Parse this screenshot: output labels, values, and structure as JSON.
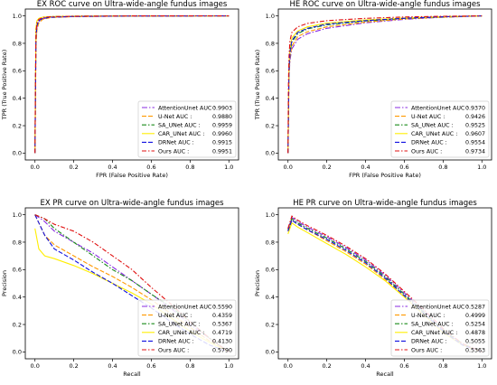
{
  "colors": {
    "AttentionUnet": "#8a2be2",
    "U-Net": "#ff9900",
    "SA_UNet": "#1a8a1a",
    "CAR_UNet": "#ffee00",
    "DRNet": "#1010e0",
    "Ours": "#e01010"
  },
  "chart_data": [
    {
      "type": "line",
      "title": "EX ROC curve on Ultra-wide-angle fundus images",
      "xlabel": "FPR (False Positive Rate)",
      "ylabel": "TPR (True Positive Rate)",
      "xlim": [
        -0.05,
        1.05
      ],
      "ylim": [
        -0.05,
        1.05
      ],
      "xticks": [
        "0.0",
        "0.2",
        "0.4",
        "0.6",
        "0.8",
        "1.0"
      ],
      "yticks": [
        "0.0",
        "0.2",
        "0.4",
        "0.6",
        "0.8",
        "1.0"
      ],
      "legend_position": "lower-right",
      "series": [
        {
          "name": "AttentionUnet AUC :",
          "auc": "0.9903",
          "x": [
            0,
            0.005,
            0.01,
            0.02,
            0.04,
            0.08,
            0.2,
            0.5,
            1.0
          ],
          "y": [
            0,
            0.82,
            0.92,
            0.96,
            0.98,
            0.99,
            0.995,
            0.999,
            1.0
          ]
        },
        {
          "name": "U-Net AUC :",
          "auc": "0.9880",
          "x": [
            0,
            0.005,
            0.01,
            0.02,
            0.04,
            0.08,
            0.2,
            0.5,
            1.0
          ],
          "y": [
            0,
            0.78,
            0.9,
            0.95,
            0.975,
            0.988,
            0.995,
            0.999,
            1.0
          ]
        },
        {
          "name": "SA_UNet AUC :",
          "auc": "0.9959",
          "x": [
            0,
            0.005,
            0.01,
            0.02,
            0.04,
            0.08,
            0.2,
            0.5,
            1.0
          ],
          "y": [
            0,
            0.9,
            0.96,
            0.98,
            0.99,
            0.995,
            0.998,
            1.0,
            1.0
          ]
        },
        {
          "name": "CAR_UNet AUC :",
          "auc": "0.9960",
          "x": [
            0,
            0.005,
            0.01,
            0.02,
            0.04,
            0.08,
            0.2,
            0.5,
            1.0
          ],
          "y": [
            0,
            0.91,
            0.965,
            0.982,
            0.991,
            0.995,
            0.998,
            1.0,
            1.0
          ]
        },
        {
          "name": "DRNet AUC :",
          "auc": "0.9915",
          "x": [
            0,
            0.005,
            0.01,
            0.02,
            0.04,
            0.08,
            0.2,
            0.5,
            1.0
          ],
          "y": [
            0,
            0.84,
            0.93,
            0.965,
            0.982,
            0.99,
            0.996,
            0.999,
            1.0
          ]
        },
        {
          "name": "Ours AUC :",
          "auc": "0.9951",
          "x": [
            0,
            0.002,
            0.005,
            0.01,
            0.02,
            0.04,
            0.08,
            0.2,
            0.5,
            1.0
          ],
          "y": [
            0,
            0.5,
            0.88,
            0.95,
            0.975,
            0.988,
            0.994,
            0.998,
            1.0,
            1.0
          ]
        }
      ]
    },
    {
      "type": "line",
      "title": "HE ROC curve on Ultra-wide-angle fundus images",
      "xlabel": "FPR (False Positive Rate)",
      "ylabel": "TPR (True Positive Rate)",
      "xlim": [
        -0.05,
        1.05
      ],
      "ylim": [
        -0.05,
        1.05
      ],
      "xticks": [
        "0.0",
        "0.2",
        "0.4",
        "0.6",
        "0.8",
        "1.0"
      ],
      "yticks": [
        "0.0",
        "0.2",
        "0.4",
        "0.6",
        "0.8",
        "1.0"
      ],
      "legend_position": "lower-right",
      "series": [
        {
          "name": "AttentionUnet AUC :",
          "auc": "0.9370",
          "x": [
            0,
            0.005,
            0.01,
            0.02,
            0.05,
            0.1,
            0.2,
            0.4,
            0.6,
            0.8,
            1.0
          ],
          "y": [
            0,
            0.55,
            0.68,
            0.76,
            0.83,
            0.87,
            0.91,
            0.95,
            0.975,
            0.99,
            1.0
          ]
        },
        {
          "name": "U-Net AUC :",
          "auc": "0.9426",
          "x": [
            0,
            0.005,
            0.01,
            0.02,
            0.05,
            0.1,
            0.2,
            0.4,
            0.6,
            0.8,
            1.0
          ],
          "y": [
            0,
            0.57,
            0.7,
            0.78,
            0.85,
            0.885,
            0.92,
            0.955,
            0.978,
            0.991,
            1.0
          ]
        },
        {
          "name": "SA_UNet AUC :",
          "auc": "0.9525",
          "x": [
            0,
            0.005,
            0.01,
            0.02,
            0.05,
            0.1,
            0.2,
            0.4,
            0.6,
            0.8,
            1.0
          ],
          "y": [
            0,
            0.6,
            0.73,
            0.81,
            0.87,
            0.905,
            0.935,
            0.963,
            0.982,
            0.993,
            1.0
          ]
        },
        {
          "name": "CAR_UNet AUC :",
          "auc": "0.9607",
          "x": [
            0,
            0.005,
            0.01,
            0.02,
            0.05,
            0.1,
            0.2,
            0.4,
            0.6,
            0.8,
            1.0
          ],
          "y": [
            0,
            0.62,
            0.76,
            0.84,
            0.89,
            0.92,
            0.948,
            0.97,
            0.985,
            0.995,
            1.0
          ]
        },
        {
          "name": "DRNet AUC :",
          "auc": "0.9554",
          "x": [
            0,
            0.005,
            0.01,
            0.02,
            0.05,
            0.1,
            0.2,
            0.4,
            0.6,
            0.8,
            1.0
          ],
          "y": [
            0,
            0.61,
            0.74,
            0.82,
            0.88,
            0.91,
            0.94,
            0.966,
            0.983,
            0.994,
            1.0
          ]
        },
        {
          "name": "Ours AUC :",
          "auc": "0.9734",
          "x": [
            0,
            0.002,
            0.005,
            0.01,
            0.02,
            0.05,
            0.1,
            0.2,
            0.4,
            0.6,
            0.8,
            1.0
          ],
          "y": [
            0,
            0.5,
            0.7,
            0.82,
            0.88,
            0.92,
            0.945,
            0.965,
            0.982,
            0.992,
            0.997,
            1.0
          ]
        }
      ]
    },
    {
      "type": "line",
      "title": "EX PR curve on  Ultra-wide-angle fundus images",
      "xlabel": "Recall",
      "ylabel": "Precision",
      "xlim": [
        -0.05,
        1.05
      ],
      "ylim": [
        -0.05,
        1.05
      ],
      "xticks": [
        "0.0",
        "0.2",
        "0.4",
        "0.6",
        "0.8",
        "1.0"
      ],
      "yticks": [
        "0.0",
        "0.2",
        "0.4",
        "0.6",
        "0.8",
        "1.0"
      ],
      "legend_position": "lower-right",
      "series": [
        {
          "name": "AttentionUnet AUC :",
          "auc": "0.5590",
          "x": [
            0,
            0.05,
            0.1,
            0.2,
            0.3,
            0.4,
            0.5,
            0.6,
            0.7,
            0.8,
            0.9,
            1.0
          ],
          "y": [
            1.0,
            0.95,
            0.88,
            0.8,
            0.72,
            0.62,
            0.52,
            0.42,
            0.32,
            0.2,
            0.1,
            0.0
          ]
        },
        {
          "name": "U-Net AUC :",
          "auc": "0.4359",
          "x": [
            0,
            0.05,
            0.1,
            0.2,
            0.3,
            0.4,
            0.5,
            0.6,
            0.7,
            0.8,
            0.9,
            1.0
          ],
          "y": [
            1.0,
            0.85,
            0.78,
            0.7,
            0.62,
            0.55,
            0.47,
            0.38,
            0.28,
            0.18,
            0.08,
            0.0
          ]
        },
        {
          "name": "SA_UNet AUC :",
          "auc": "0.5367",
          "x": [
            0,
            0.05,
            0.1,
            0.2,
            0.3,
            0.4,
            0.5,
            0.6,
            0.7,
            0.8,
            0.9,
            1.0
          ],
          "y": [
            1.0,
            0.97,
            0.9,
            0.8,
            0.7,
            0.6,
            0.52,
            0.42,
            0.33,
            0.22,
            0.1,
            0.0
          ]
        },
        {
          "name": "CAR_UNet AUC :",
          "auc": "0.4719",
          "x": [
            0,
            0.02,
            0.05,
            0.1,
            0.2,
            0.3,
            0.4,
            0.5,
            0.6,
            0.7,
            0.8,
            0.9,
            1.0
          ],
          "y": [
            0.9,
            0.75,
            0.7,
            0.68,
            0.63,
            0.57,
            0.5,
            0.43,
            0.35,
            0.25,
            0.15,
            0.07,
            0.0
          ]
        },
        {
          "name": "DRNet AUC :",
          "auc": "0.4130",
          "x": [
            0,
            0.05,
            0.1,
            0.2,
            0.3,
            0.4,
            0.5,
            0.6,
            0.7,
            0.8,
            0.9,
            1.0
          ],
          "y": [
            1.0,
            0.85,
            0.75,
            0.67,
            0.58,
            0.5,
            0.41,
            0.32,
            0.22,
            0.13,
            0.05,
            0.0
          ]
        },
        {
          "name": "Ours AUC :",
          "auc": "0.5790",
          "x": [
            0,
            0.05,
            0.1,
            0.2,
            0.3,
            0.4,
            0.5,
            0.6,
            0.7,
            0.8,
            0.9,
            1.0
          ],
          "y": [
            1.0,
            0.97,
            0.93,
            0.88,
            0.8,
            0.7,
            0.6,
            0.47,
            0.35,
            0.22,
            0.1,
            0.0
          ]
        }
      ]
    },
    {
      "type": "line",
      "title": "HE PR curve on  Ultra-wide-angle fundus images",
      "xlabel": "Recall",
      "ylabel": "Precision",
      "xlim": [
        -0.05,
        1.05
      ],
      "ylim": [
        -0.05,
        1.05
      ],
      "xticks": [
        "0.0",
        "0.2",
        "0.4",
        "0.6",
        "0.8",
        "1.0"
      ],
      "yticks": [
        "0.0",
        "0.2",
        "0.4",
        "0.6",
        "0.8",
        "1.0"
      ],
      "legend_position": "lower-right",
      "series": [
        {
          "name": "AttentionUnet AUC :",
          "auc": "0.5287",
          "x": [
            0,
            0.02,
            0.05,
            0.1,
            0.2,
            0.3,
            0.4,
            0.5,
            0.6,
            0.7,
            0.8,
            0.9,
            1.0
          ],
          "y": [
            0.9,
            0.98,
            0.95,
            0.91,
            0.84,
            0.76,
            0.67,
            0.56,
            0.43,
            0.3,
            0.16,
            0.06,
            0.0
          ]
        },
        {
          "name": "U-Net AUC :",
          "auc": "0.4999",
          "x": [
            0,
            0.02,
            0.05,
            0.1,
            0.2,
            0.3,
            0.4,
            0.5,
            0.6,
            0.7,
            0.8,
            0.9,
            1.0
          ],
          "y": [
            0.88,
            0.96,
            0.93,
            0.89,
            0.81,
            0.73,
            0.64,
            0.53,
            0.41,
            0.28,
            0.15,
            0.05,
            0.0
          ]
        },
        {
          "name": "SA_UNet AUC :",
          "auc": "0.5254",
          "x": [
            0,
            0.02,
            0.05,
            0.1,
            0.2,
            0.3,
            0.4,
            0.5,
            0.6,
            0.7,
            0.8,
            0.9,
            1.0
          ],
          "y": [
            0.89,
            0.97,
            0.94,
            0.9,
            0.83,
            0.75,
            0.66,
            0.55,
            0.42,
            0.29,
            0.16,
            0.06,
            0.0
          ]
        },
        {
          "name": "CAR_UNet AUC :",
          "auc": "0.4878",
          "x": [
            0,
            0.02,
            0.05,
            0.1,
            0.2,
            0.3,
            0.4,
            0.5,
            0.6,
            0.7,
            0.8,
            0.9,
            1.0
          ],
          "y": [
            0.86,
            0.94,
            0.91,
            0.87,
            0.79,
            0.71,
            0.62,
            0.52,
            0.4,
            0.27,
            0.14,
            0.05,
            0.0
          ]
        },
        {
          "name": "DRNet AUC :",
          "auc": "0.5055",
          "x": [
            0,
            0.02,
            0.05,
            0.1,
            0.2,
            0.3,
            0.4,
            0.5,
            0.6,
            0.7,
            0.8,
            0.9,
            1.0
          ],
          "y": [
            0.88,
            0.96,
            0.93,
            0.89,
            0.82,
            0.74,
            0.65,
            0.54,
            0.41,
            0.28,
            0.15,
            0.05,
            0.0
          ]
        },
        {
          "name": "Ours AUC :",
          "auc": "0.5363",
          "x": [
            0,
            0.02,
            0.05,
            0.1,
            0.2,
            0.3,
            0.4,
            0.5,
            0.6,
            0.7,
            0.8,
            0.9,
            1.0
          ],
          "y": [
            0.9,
            0.99,
            0.96,
            0.92,
            0.85,
            0.77,
            0.68,
            0.57,
            0.44,
            0.31,
            0.17,
            0.06,
            0.0
          ]
        }
      ]
    }
  ]
}
